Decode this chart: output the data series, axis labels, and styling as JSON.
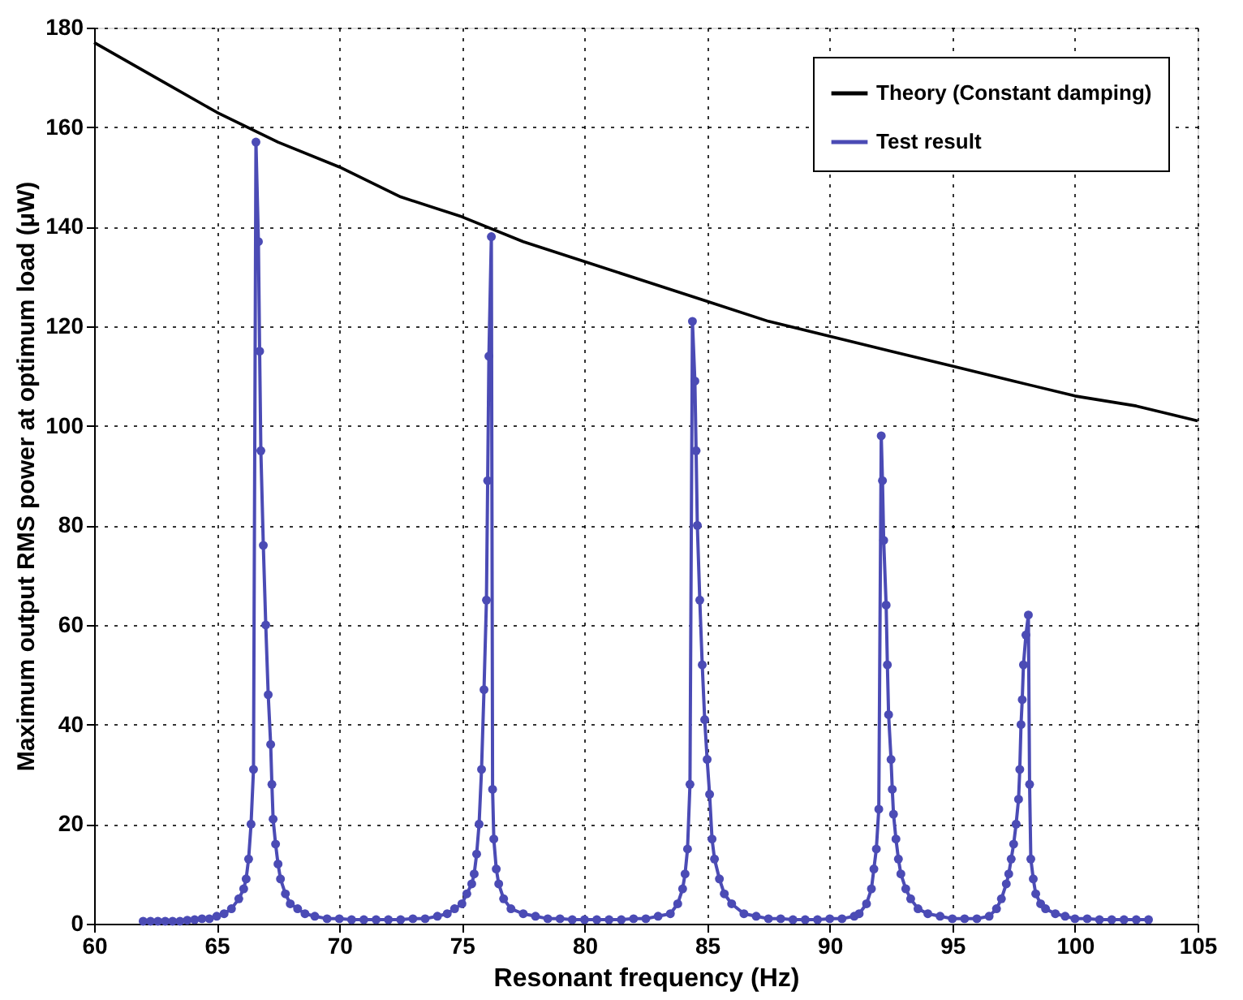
{
  "chart_data": {
    "type": "line",
    "xlabel": "Resonant frequency (Hz)",
    "ylabel": "Maximum output RMS power at optimum load (μW)",
    "xlim": [
      60,
      105
    ],
    "xticks": [
      60,
      65,
      70,
      75,
      80,
      85,
      90,
      95,
      100,
      105
    ],
    "ylim": [
      0,
      180
    ],
    "yticks": [
      0,
      20,
      40,
      60,
      80,
      100,
      120,
      140,
      160,
      180
    ],
    "grid": true,
    "legend": "top right",
    "series": [
      {
        "name": "Theory (Constant damping)",
        "color": "#000000",
        "marker": "none",
        "line_style": "solid",
        "x": [
          60,
          62.5,
          65,
          67.5,
          70,
          72.5,
          75,
          77.5,
          80,
          82.5,
          85,
          87.5,
          90,
          92.5,
          95,
          97.5,
          100,
          102.5,
          105
        ],
        "values": [
          177,
          170,
          163,
          157,
          152,
          146,
          142,
          137,
          133,
          129,
          125,
          121,
          118,
          115,
          112,
          109,
          106,
          104,
          101
        ]
      },
      {
        "name": "Test result",
        "color": "#4b4bb5",
        "marker": "circle",
        "line_style": "solid",
        "x": [
          62,
          62.3,
          62.6,
          62.9,
          63.2,
          63.5,
          63.8,
          64.1,
          64.4,
          64.7,
          65.0,
          65.3,
          65.6,
          65.9,
          66.1,
          66.2,
          66.3,
          66.4,
          66.5,
          66.6,
          66.7,
          66.75,
          66.8,
          66.9,
          67.0,
          67.1,
          67.2,
          67.25,
          67.3,
          67.4,
          67.5,
          67.6,
          67.8,
          68.0,
          68.3,
          68.6,
          69.0,
          69.5,
          70.0,
          70.5,
          71.0,
          71.5,
          72.0,
          72.5,
          73.0,
          73.5,
          74.0,
          74.4,
          74.7,
          75.0,
          75.2,
          75.4,
          75.5,
          75.6,
          75.7,
          75.8,
          75.9,
          76.0,
          76.05,
          76.1,
          76.2,
          76.25,
          76.3,
          76.4,
          76.5,
          76.7,
          77.0,
          77.5,
          78.0,
          78.5,
          79.0,
          79.5,
          80.0,
          80.5,
          81.0,
          81.5,
          82.0,
          82.5,
          83.0,
          83.5,
          83.8,
          84.0,
          84.1,
          84.2,
          84.3,
          84.4,
          84.5,
          84.55,
          84.6,
          84.7,
          84.8,
          84.9,
          85.0,
          85.1,
          85.2,
          85.3,
          85.5,
          85.7,
          86.0,
          86.5,
          87.0,
          87.5,
          88.0,
          88.5,
          89.0,
          89.5,
          90.0,
          90.5,
          91.0,
          91.2,
          91.5,
          91.7,
          91.8,
          91.9,
          92.0,
          92.1,
          92.15,
          92.2,
          92.3,
          92.35,
          92.4,
          92.5,
          92.55,
          92.6,
          92.7,
          92.8,
          92.9,
          93.1,
          93.3,
          93.6,
          94.0,
          94.5,
          95.0,
          95.5,
          96.0,
          96.5,
          96.8,
          97.0,
          97.2,
          97.3,
          97.4,
          97.5,
          97.6,
          97.7,
          97.75,
          97.8,
          97.85,
          97.9,
          98.0,
          98.1,
          98.15,
          98.2,
          98.3,
          98.4,
          98.6,
          98.8,
          99.2,
          99.6,
          100.0,
          100.5,
          101.0,
          101.5,
          102.0,
          102.5,
          103.0
        ],
        "values": [
          0.5,
          0.5,
          0.5,
          0.5,
          0.5,
          0.5,
          0.7,
          0.8,
          1,
          1,
          1.5,
          2,
          3,
          5,
          7,
          9,
          13,
          20,
          31,
          157,
          137,
          115,
          95,
          76,
          60,
          46,
          36,
          28,
          21,
          16,
          12,
          9,
          6,
          4,
          3,
          2,
          1.5,
          1,
          1,
          0.8,
          0.8,
          0.8,
          0.8,
          0.8,
          1,
          1,
          1.5,
          2,
          3,
          4,
          6,
          8,
          10,
          14,
          20,
          31,
          47,
          65,
          89,
          114,
          138,
          27,
          17,
          11,
          8,
          5,
          3,
          2,
          1.5,
          1,
          1,
          0.8,
          0.8,
          0.8,
          0.8,
          0.8,
          1,
          1,
          1.5,
          2,
          4,
          7,
          10,
          15,
          28,
          121,
          109,
          95,
          80,
          65,
          52,
          41,
          33,
          26,
          17,
          13,
          9,
          6,
          4,
          2,
          1.5,
          1,
          1,
          0.8,
          0.8,
          0.8,
          1,
          1,
          1.5,
          2,
          4,
          7,
          11,
          15,
          23,
          98,
          89,
          77,
          64,
          52,
          42,
          33,
          27,
          22,
          17,
          13,
          10,
          7,
          5,
          3,
          2,
          1.5,
          1,
          1,
          1,
          1.5,
          3,
          5,
          8,
          10,
          13,
          16,
          20,
          25,
          31,
          40,
          45,
          52,
          58,
          62,
          28,
          13,
          9,
          6,
          4,
          3,
          2,
          1.5,
          1,
          1,
          0.8,
          0.8,
          0.8,
          0.8,
          0.8
        ]
      }
    ]
  }
}
